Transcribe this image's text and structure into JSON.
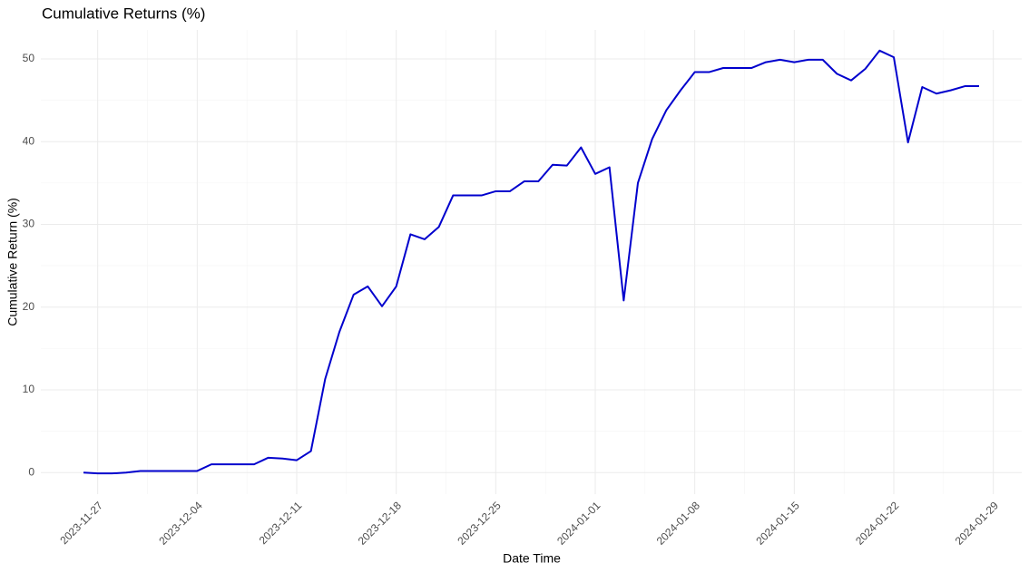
{
  "chart_data": {
    "type": "line",
    "title": "Cumulative Returns (%)",
    "x_label": "Date Time",
    "y_label": "Cumulative Return (%)",
    "x": [
      "2023-11-26",
      "2023-11-27",
      "2023-11-28",
      "2023-11-29",
      "2023-11-30",
      "2023-12-01",
      "2023-12-02",
      "2023-12-03",
      "2023-12-04",
      "2023-12-05",
      "2023-12-06",
      "2023-12-07",
      "2023-12-08",
      "2023-12-09",
      "2023-12-10",
      "2023-12-11",
      "2023-12-12",
      "2023-12-13",
      "2023-12-14",
      "2023-12-15",
      "2023-12-16",
      "2023-12-17",
      "2023-12-18",
      "2023-12-19",
      "2023-12-20",
      "2023-12-21",
      "2023-12-22",
      "2023-12-23",
      "2023-12-24",
      "2023-12-25",
      "2023-12-26",
      "2023-12-27",
      "2023-12-28",
      "2023-12-29",
      "2023-12-30",
      "2023-12-31",
      "2024-01-01",
      "2024-01-02",
      "2024-01-03",
      "2024-01-04",
      "2024-01-05",
      "2024-01-06",
      "2024-01-07",
      "2024-01-08",
      "2024-01-09",
      "2024-01-10",
      "2024-01-11",
      "2024-01-12",
      "2024-01-13",
      "2024-01-14",
      "2024-01-15",
      "2024-01-16",
      "2024-01-17",
      "2024-01-18",
      "2024-01-19",
      "2024-01-20",
      "2024-01-21",
      "2024-01-22",
      "2024-01-23",
      "2024-01-24",
      "2024-01-25",
      "2024-01-26",
      "2024-01-27",
      "2024-01-28"
    ],
    "values": [
      0,
      -0.1,
      -0.1,
      0,
      0.2,
      0.2,
      0.2,
      0.2,
      0.2,
      1.0,
      1.0,
      1.0,
      1.0,
      1.8,
      1.7,
      1.5,
      2.6,
      11.3,
      17.0,
      21.5,
      22.5,
      20.1,
      22.5,
      28.8,
      28.2,
      29.7,
      33.5,
      33.5,
      33.5,
      34.0,
      34.0,
      35.2,
      35.2,
      37.2,
      37.1,
      39.3,
      36.1,
      36.9,
      20.8,
      35.0,
      40.3,
      43.8,
      46.2,
      48.4,
      48.4,
      48.9,
      48.9,
      48.9,
      49.6,
      49.9,
      49.6,
      49.9,
      49.9,
      48.2,
      47.4,
      48.8,
      51.0,
      50.2,
      39.9,
      46.6,
      45.8,
      46.2,
      46.7,
      46.7
    ],
    "color": "#0000cd",
    "xlim": [
      "2023-11-23",
      "2024-01-31"
    ],
    "xticks": [
      "2023-11-27",
      "2023-12-04",
      "2023-12-11",
      "2023-12-18",
      "2023-12-25",
      "2024-01-01",
      "2024-01-08",
      "2024-01-15",
      "2024-01-22",
      "2024-01-29"
    ],
    "ylim": [
      -2.6,
      53.5
    ],
    "yticks": [
      0,
      10,
      20,
      30,
      40,
      50
    ],
    "grid": true
  }
}
